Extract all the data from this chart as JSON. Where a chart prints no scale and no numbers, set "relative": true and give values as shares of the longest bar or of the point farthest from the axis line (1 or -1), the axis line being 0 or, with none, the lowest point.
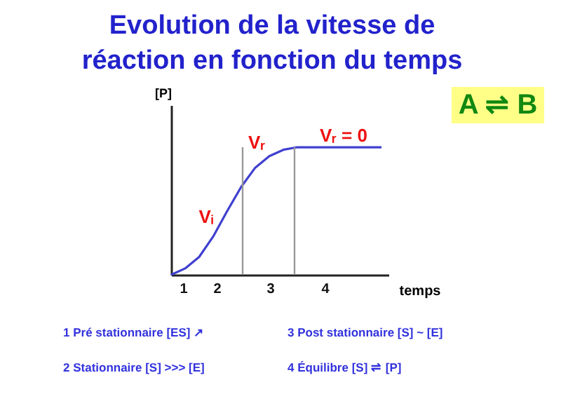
{
  "chart_data": {
    "type": "line",
    "relative": true,
    "title": "Evolution de la vitesse de réaction en fonction du temps",
    "xlabel": "temps",
    "ylabel": "[P]",
    "marker": "none",
    "line_style": "solid",
    "categories": [
      null,
      null,
      null,
      null,
      null,
      null,
      null,
      null,
      null,
      null,
      null,
      null,
      null,
      null,
      null,
      null
    ],
    "series": [
      {
        "color": "#4040d0",
        "values": [
          0,
          0.05,
          0.14,
          0.3,
          0.5,
          0.69,
          0.84,
          0.93,
          0.98,
          1,
          1,
          1,
          1,
          1,
          1,
          1
        ]
      }
    ],
    "annotations": [
      "1",
      "2",
      "3",
      "4",
      "Vᵢ",
      "Vᵣ",
      "Vᵣ = 0",
      "A ⇌ B",
      "1 Pré stationnaire [ES] ↗",
      "2 Stationnaire [S] >>> [E]",
      "3 Post stationnaire [S] ~ [E]",
      "4 Équilibre [S] ⇌ [P]"
    ]
  }
}
